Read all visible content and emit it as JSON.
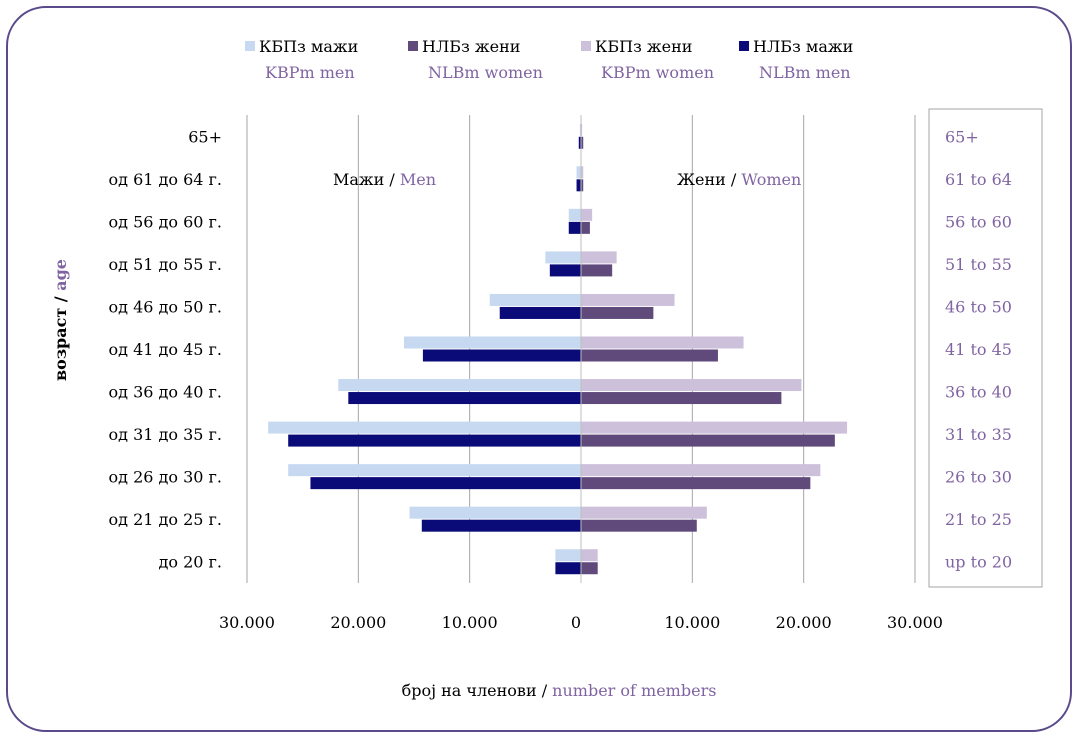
{
  "chart_data": {
    "type": "bar",
    "orientation": "horizontal-population-pyramid",
    "categories": [
      "до 20 г.",
      "од 21 до 25 г.",
      "од 26 до 30 г.",
      "од 31 до 35 г.",
      "од 36 до 40 г.",
      "од 41 до 45 г.",
      "од 46 до 50 г.",
      "од 51 до 55 г.",
      "од 56 до 60 г.",
      "од 61 до 64 г.",
      "65+"
    ],
    "categories_en": [
      "up to 20",
      "21 to 25",
      "26 to 30",
      "31 to 35",
      "36 to 40",
      "41 to 45",
      "46 to 50",
      "51 to 55",
      "56 to 60",
      "61 to 64",
      "65+"
    ],
    "series": [
      {
        "name": "КБПз жени",
        "name_en": "KBPm women",
        "side": "women",
        "color": "#ccc0da",
        "values": [
          1500,
          11300,
          21500,
          23900,
          19800,
          14600,
          8400,
          3200,
          1000,
          200,
          100
        ]
      },
      {
        "name": "НЛБз жени",
        "name_en": "NLBm women",
        "side": "women",
        "color": "#604a7b",
        "values": [
          1500,
          10400,
          20600,
          22800,
          18000,
          12300,
          6500,
          2800,
          800,
          200,
          200
        ]
      },
      {
        "name": "КБПз мажи",
        "name_en": "KBPm men",
        "side": "men",
        "color": "#c6d9f1",
        "values": [
          2300,
          15400,
          26300,
          28100,
          21800,
          15900,
          8200,
          3200,
          1100,
          400,
          100
        ]
      },
      {
        "name": "НЛБз мажи",
        "name_en": "NLBm men",
        "side": "men",
        "color": "#0a0a78",
        "values": [
          2300,
          14300,
          24300,
          26300,
          20900,
          14200,
          7300,
          2800,
          1100,
          400,
          200
        ]
      }
    ],
    "legend_order": [
      2,
      1,
      0,
      3
    ],
    "x_ticks": [
      "30.000",
      "20.000",
      "10.000",
      "0",
      "10.000",
      "20.000",
      "30.000"
    ],
    "xlim": [
      -30000,
      30000
    ],
    "xlabel": "број на членови",
    "xlabel_en": "number of members",
    "ylabel": "возраст",
    "ylabel_en": "age",
    "men_label": "Мажи",
    "men_label_en": "Men",
    "women_label": "Жени",
    "women_label_en": "Women",
    "legend_position": "top",
    "grid": "vertical"
  },
  "colors": {
    "frame": "#5a4a8a",
    "english_text": "#8064a2",
    "grid": "#a6a6a6"
  }
}
